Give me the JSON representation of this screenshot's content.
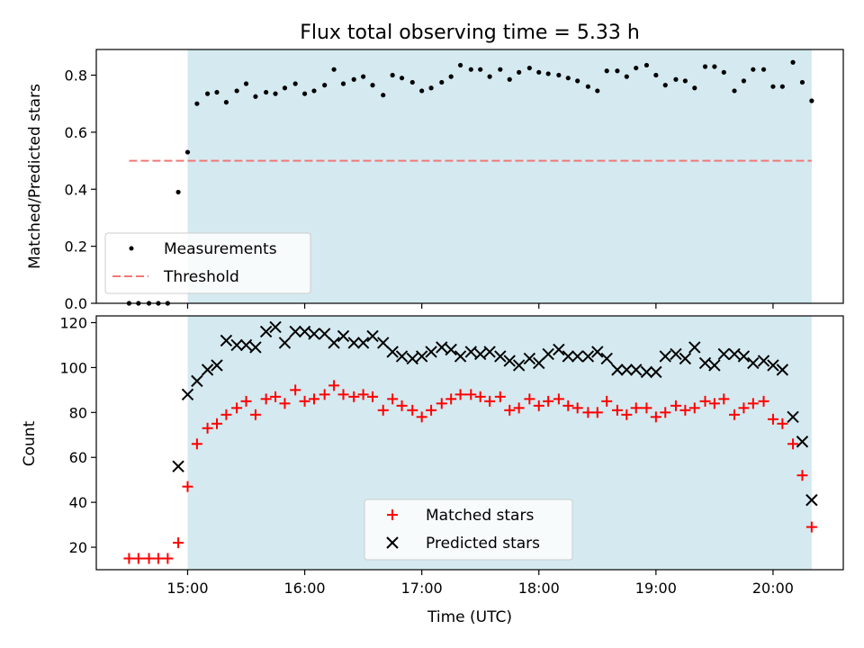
{
  "figure_title": "Flux total observing time = 5.33 h",
  "colors": {
    "observing_band": "#d4eaf0",
    "measurements": "#000000",
    "threshold": "#f07878",
    "matched": "#ff0000",
    "predicted": "#000000"
  },
  "x_axis": {
    "label": "Time (UTC)",
    "range_hours": [
      14.22,
      20.6
    ],
    "ticks": [
      {
        "value": 15,
        "label": "15:00"
      },
      {
        "value": 16,
        "label": "16:00"
      },
      {
        "value": 17,
        "label": "17:00"
      },
      {
        "value": 18,
        "label": "18:00"
      },
      {
        "value": 19,
        "label": "19:00"
      },
      {
        "value": 20,
        "label": "20:00"
      }
    ]
  },
  "observing_window_hours": [
    15.0,
    20.33
  ],
  "chart_data": [
    {
      "type": "scatter",
      "ylabel": "Matched/Predicted stars",
      "ylim": [
        0,
        0.89
      ],
      "yticks": [
        {
          "value": 0.0,
          "label": "0.0"
        },
        {
          "value": 0.2,
          "label": "0.2"
        },
        {
          "value": 0.4,
          "label": "0.4"
        },
        {
          "value": 0.6,
          "label": "0.6"
        },
        {
          "value": 0.8,
          "label": "0.8"
        }
      ],
      "legend_position": "lower-left",
      "legend": [
        "Measurements",
        "Threshold"
      ],
      "threshold": {
        "name": "Threshold",
        "y": 0.5,
        "x_range": [
          14.5,
          20.33
        ]
      },
      "series": [
        {
          "name": "Measurements",
          "x": [
            14.5,
            14.58,
            14.67,
            14.75,
            14.83,
            14.92,
            15.0,
            15.08,
            15.17,
            15.25,
            15.33,
            15.42,
            15.5,
            15.58,
            15.67,
            15.75,
            15.83,
            15.92,
            16.0,
            16.08,
            16.17,
            16.25,
            16.33,
            16.42,
            16.5,
            16.58,
            16.67,
            16.75,
            16.83,
            16.92,
            17.0,
            17.08,
            17.17,
            17.25,
            17.33,
            17.42,
            17.5,
            17.58,
            17.67,
            17.75,
            17.83,
            17.92,
            18.0,
            18.08,
            18.17,
            18.25,
            18.33,
            18.42,
            18.5,
            18.58,
            18.67,
            18.75,
            18.83,
            18.92,
            19.0,
            19.08,
            19.17,
            19.25,
            19.33,
            19.42,
            19.5,
            19.58,
            19.67,
            19.75,
            19.83,
            19.92,
            20.0,
            20.08,
            20.17,
            20.25,
            20.33
          ],
          "y": [
            0.0,
            0.0,
            0.0,
            0.0,
            0.0,
            0.39,
            0.53,
            0.7,
            0.735,
            0.74,
            0.705,
            0.745,
            0.77,
            0.725,
            0.74,
            0.735,
            0.755,
            0.77,
            0.735,
            0.745,
            0.765,
            0.82,
            0.77,
            0.785,
            0.795,
            0.765,
            0.73,
            0.8,
            0.79,
            0.775,
            0.745,
            0.755,
            0.775,
            0.795,
            0.835,
            0.82,
            0.82,
            0.795,
            0.82,
            0.785,
            0.81,
            0.825,
            0.81,
            0.805,
            0.8,
            0.79,
            0.78,
            0.76,
            0.745,
            0.815,
            0.815,
            0.795,
            0.825,
            0.835,
            0.8,
            0.765,
            0.785,
            0.78,
            0.755,
            0.83,
            0.83,
            0.81,
            0.745,
            0.78,
            0.82,
            0.82,
            0.76,
            0.76,
            0.845,
            0.775,
            0.71
          ]
        }
      ]
    },
    {
      "type": "scatter",
      "xlabel": "Time (UTC)",
      "ylabel": "Count",
      "ylim": [
        10,
        123
      ],
      "yticks": [
        {
          "value": 20,
          "label": "20"
        },
        {
          "value": 40,
          "label": "40"
        },
        {
          "value": 60,
          "label": "60"
        },
        {
          "value": 80,
          "label": "80"
        },
        {
          "value": 100,
          "label": "100"
        },
        {
          "value": 120,
          "label": "120"
        }
      ],
      "legend_position": "lower-center",
      "legend": [
        "Matched stars",
        "Predicted stars"
      ],
      "series": [
        {
          "name": "Matched stars",
          "marker": "+",
          "x": [
            14.5,
            14.58,
            14.67,
            14.75,
            14.83,
            14.92,
            15.0,
            15.08,
            15.17,
            15.25,
            15.33,
            15.42,
            15.5,
            15.58,
            15.67,
            15.75,
            15.83,
            15.92,
            16.0,
            16.08,
            16.17,
            16.25,
            16.33,
            16.42,
            16.5,
            16.58,
            16.67,
            16.75,
            16.83,
            16.92,
            17.0,
            17.08,
            17.17,
            17.25,
            17.33,
            17.42,
            17.5,
            17.58,
            17.67,
            17.75,
            17.83,
            17.92,
            18.0,
            18.08,
            18.17,
            18.25,
            18.33,
            18.42,
            18.5,
            18.58,
            18.67,
            18.75,
            18.83,
            18.92,
            19.0,
            19.08,
            19.17,
            19.25,
            19.33,
            19.42,
            19.5,
            19.58,
            19.67,
            19.75,
            19.83,
            19.92,
            20.0,
            20.08,
            20.17,
            20.25,
            20.33
          ],
          "y": [
            15,
            15,
            15,
            15,
            15,
            22,
            47,
            66,
            73,
            75,
            79,
            82,
            85,
            79,
            86,
            87,
            84,
            90,
            85,
            86,
            88,
            92,
            88,
            87,
            88,
            87,
            81,
            86,
            83,
            81,
            78,
            81,
            84,
            86,
            88,
            88,
            87,
            85,
            87,
            81,
            82,
            86,
            83,
            85,
            86,
            83,
            82,
            80,
            80,
            85,
            81,
            79,
            82,
            82,
            78,
            80,
            83,
            81,
            82,
            85,
            84,
            86,
            79,
            82,
            84,
            85,
            77,
            75,
            66,
            52,
            29
          ]
        },
        {
          "name": "Predicted stars",
          "marker": "x",
          "x": [
            14.92,
            15.0,
            15.08,
            15.17,
            15.25,
            15.33,
            15.42,
            15.5,
            15.58,
            15.67,
            15.75,
            15.83,
            15.92,
            16.0,
            16.08,
            16.17,
            16.25,
            16.33,
            16.42,
            16.5,
            16.58,
            16.67,
            16.75,
            16.83,
            16.92,
            17.0,
            17.08,
            17.17,
            17.25,
            17.33,
            17.42,
            17.5,
            17.58,
            17.67,
            17.75,
            17.83,
            17.92,
            18.0,
            18.08,
            18.17,
            18.25,
            18.33,
            18.42,
            18.5,
            18.58,
            18.67,
            18.75,
            18.83,
            18.92,
            19.0,
            19.08,
            19.17,
            19.25,
            19.33,
            19.42,
            19.5,
            19.58,
            19.67,
            19.75,
            19.83,
            19.92,
            20.0,
            20.08,
            20.17,
            20.25,
            20.33
          ],
          "y": [
            56,
            88,
            94,
            99,
            101,
            112,
            110,
            110,
            109,
            116,
            118,
            111,
            116,
            116,
            115,
            115,
            111,
            114,
            111,
            111,
            114,
            111,
            107,
            105,
            104,
            105,
            107,
            109,
            108,
            105,
            107,
            106,
            107,
            105,
            103,
            101,
            104,
            102,
            106,
            108,
            105,
            105,
            105,
            107,
            104,
            99,
            99,
            99,
            98,
            98,
            105,
            106,
            104,
            109,
            102,
            101,
            106,
            106,
            105,
            102,
            103,
            101,
            99,
            78,
            67,
            41
          ]
        }
      ]
    }
  ]
}
